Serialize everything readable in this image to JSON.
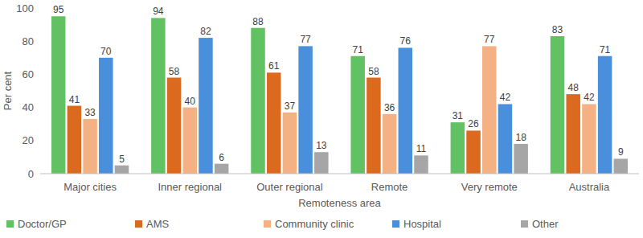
{
  "chart_data": {
    "type": "bar",
    "x_label": "Remoteness area",
    "y_label": "Per cent",
    "categories": [
      "Major cities",
      "Inner regional",
      "Outer regional",
      "Remote",
      "Very remote",
      "Australia"
    ],
    "series": [
      {
        "name": "Doctor/GP",
        "color": "#62c162",
        "values": [
          95,
          94,
          88,
          71,
          31,
          83
        ]
      },
      {
        "name": "AMS",
        "color": "#dc6a1e",
        "values": [
          41,
          58,
          61,
          58,
          26,
          48
        ]
      },
      {
        "name": "Community clinic",
        "color": "#f4b183",
        "values": [
          33,
          40,
          37,
          36,
          77,
          42
        ]
      },
      {
        "name": "Hospital",
        "color": "#4a8fdc",
        "values": [
          70,
          82,
          77,
          76,
          42,
          71
        ]
      },
      {
        "name": "Other",
        "color": "#a6a6a6",
        "values": [
          5,
          6,
          13,
          11,
          18,
          9
        ]
      }
    ],
    "ylim": [
      0,
      100
    ],
    "yticks": [
      0,
      20,
      40,
      60,
      80,
      100
    ],
    "grid": false,
    "legend": "bottom",
    "data_labels": true
  }
}
